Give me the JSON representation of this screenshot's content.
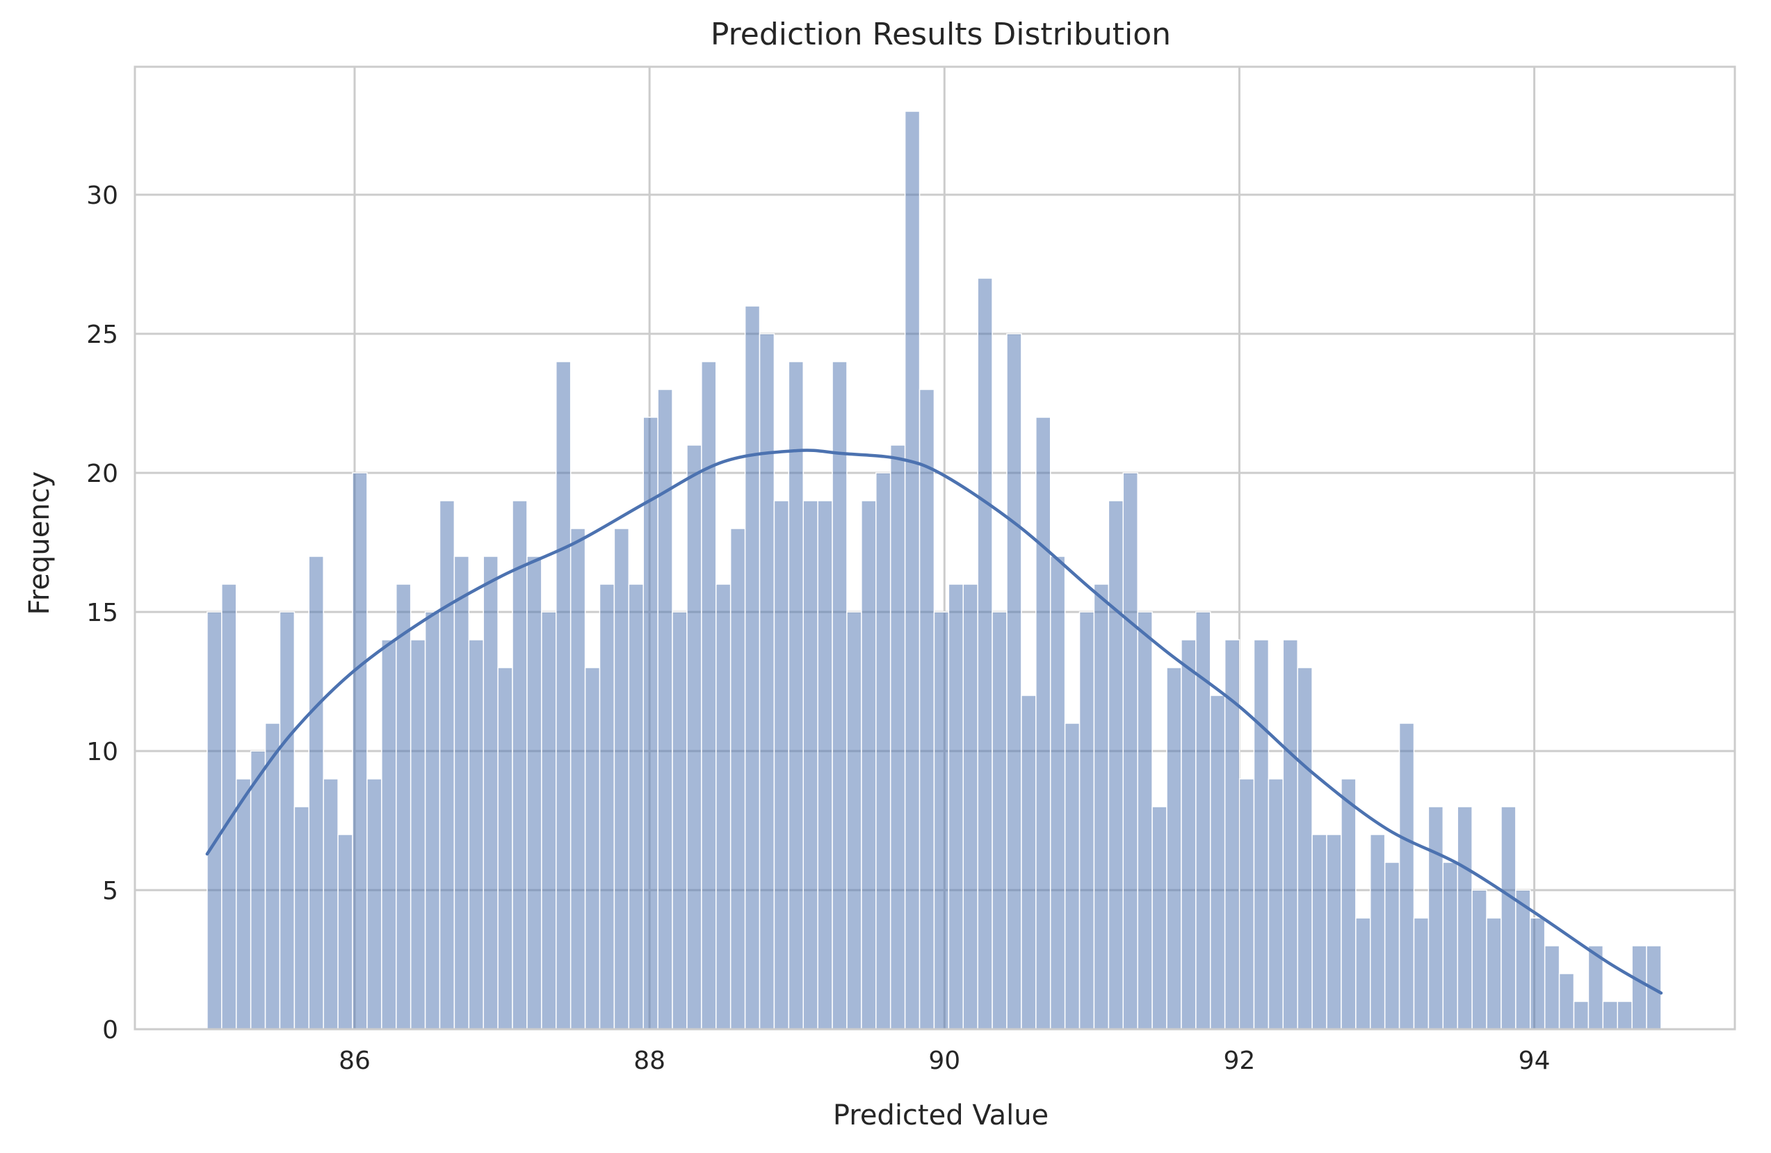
{
  "chart_data": {
    "type": "bar",
    "title": "Prediction Results Distribution",
    "xlabel": "Predicted Value",
    "ylabel": "Frequency",
    "xlim": [
      84.51,
      95.36
    ],
    "ylim": [
      0,
      34.6
    ],
    "x_ticks": [
      86,
      88,
      90,
      92,
      94
    ],
    "y_ticks": [
      0,
      5,
      10,
      15,
      20,
      25,
      30
    ],
    "grid": true,
    "bin_start": 85.0,
    "bin_end": 94.86,
    "bar_color": "#4c72b0",
    "values": [
      15,
      16,
      9,
      10,
      11,
      15,
      8,
      17,
      9,
      7,
      20,
      9,
      14,
      16,
      14,
      15,
      19,
      17,
      14,
      17,
      13,
      19,
      17,
      15,
      24,
      18,
      13,
      16,
      18,
      16,
      22,
      23,
      15,
      21,
      24,
      16,
      18,
      26,
      25,
      19,
      24,
      19,
      19,
      24,
      15,
      19,
      20,
      21,
      33,
      23,
      15,
      16,
      16,
      27,
      15,
      25,
      12,
      22,
      17,
      11,
      15,
      16,
      19,
      20,
      15,
      8,
      13,
      14,
      15,
      12,
      14,
      9,
      14,
      9,
      14,
      13,
      7,
      7,
      9,
      4,
      7,
      6,
      11,
      4,
      8,
      6,
      8,
      5,
      4,
      8,
      5,
      4,
      3,
      2,
      1,
      3,
      1,
      1,
      3,
      3
    ],
    "kde": {
      "name": "",
      "color": "#4c72b0",
      "x": [
        85.0,
        85.3,
        85.6,
        86.0,
        86.5,
        87.0,
        87.5,
        88.0,
        88.5,
        89.0,
        89.3,
        89.7,
        90.0,
        90.5,
        91.0,
        91.5,
        92.0,
        92.5,
        93.0,
        93.5,
        94.0,
        94.5,
        94.86
      ],
      "y": [
        6.3,
        8.7,
        10.8,
        12.9,
        14.8,
        16.3,
        17.5,
        19.0,
        20.4,
        20.8,
        20.7,
        20.5,
        19.9,
        18.1,
        15.8,
        13.6,
        11.6,
        9.2,
        7.2,
        5.9,
        4.2,
        2.4,
        1.3
      ]
    }
  }
}
